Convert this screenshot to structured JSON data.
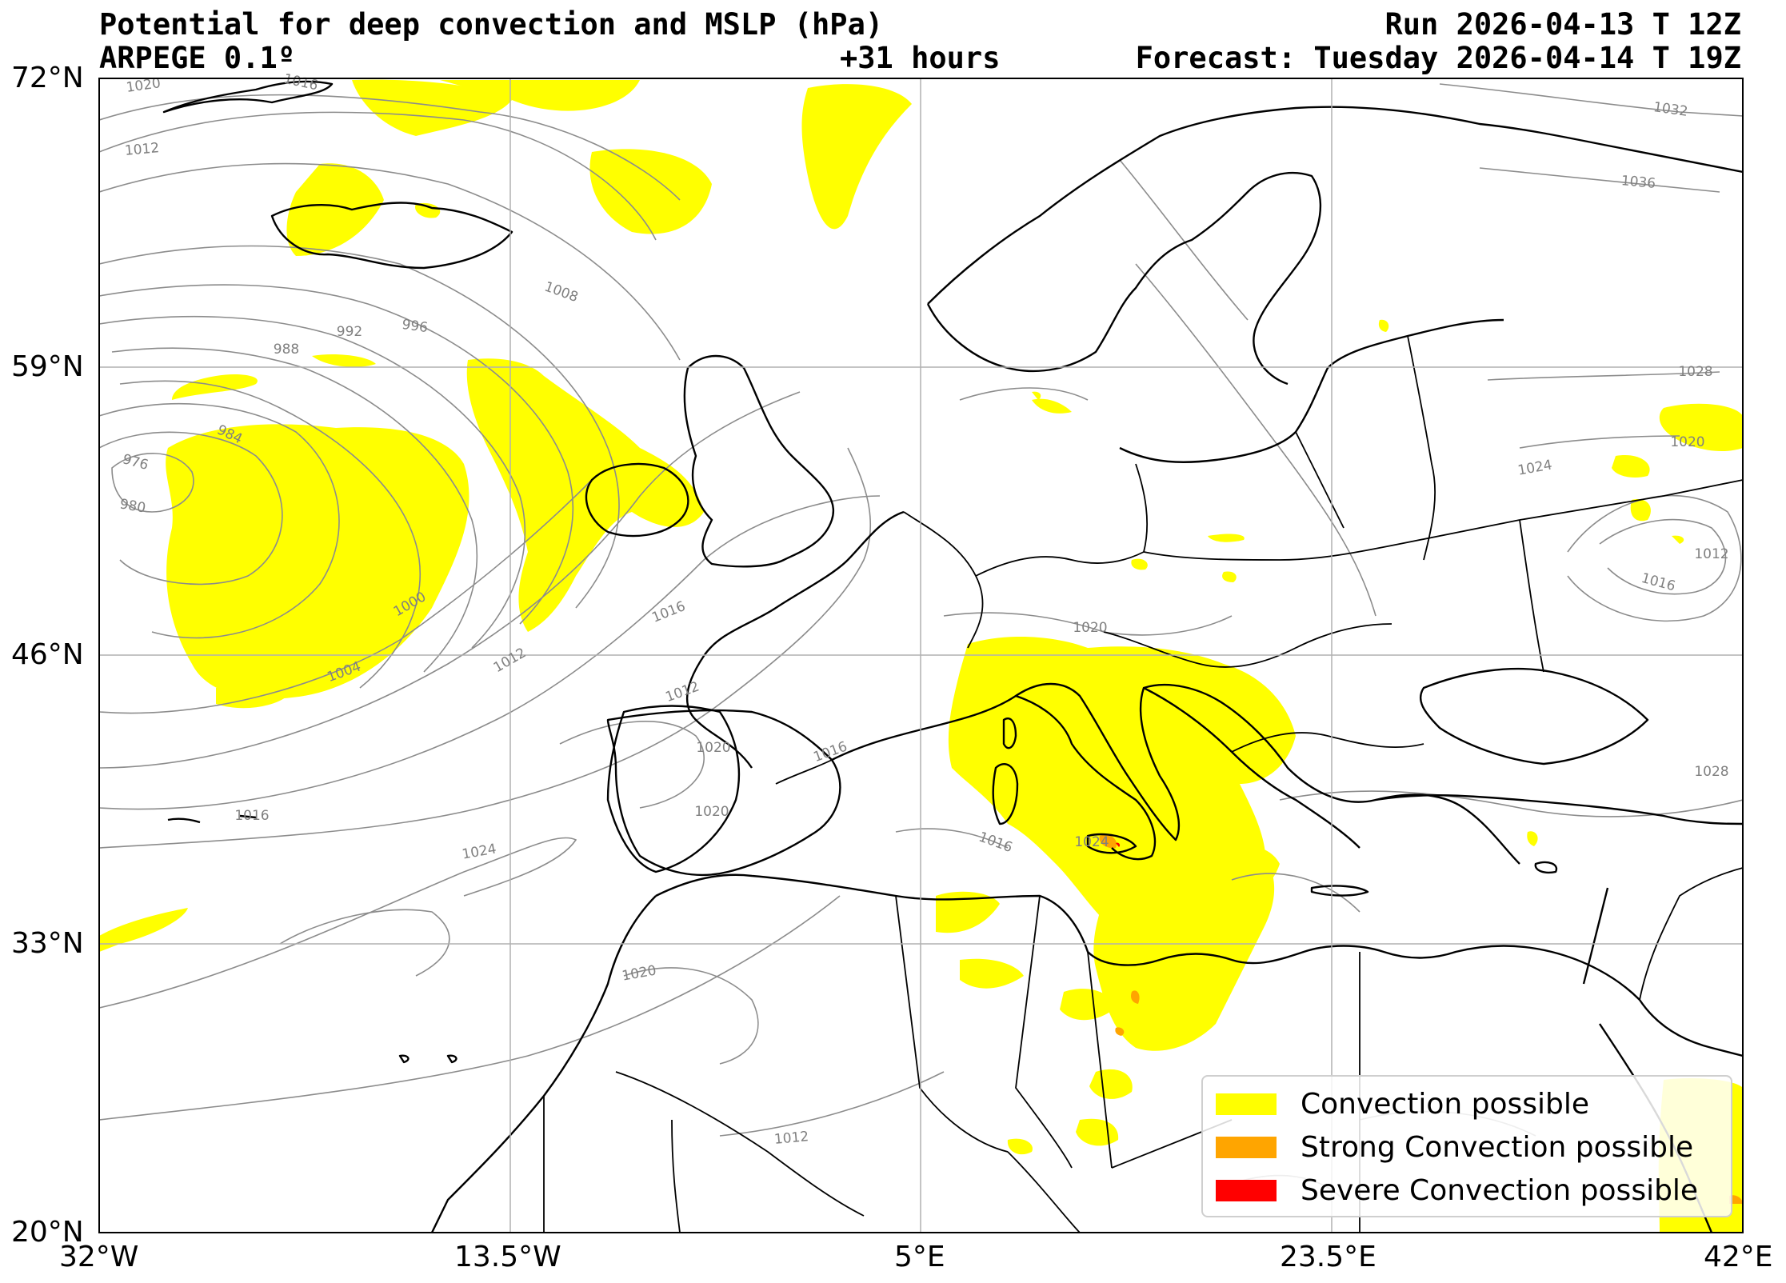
{
  "header": {
    "title": "Potential for deep convection and MSLP (hPa)",
    "model": "ARPEGE 0.1º",
    "lead_time": "+31 hours",
    "run": "Run 2026-04-13 T 12Z",
    "forecast": "Forecast: Tuesday 2026-04-14 T 19Z"
  },
  "axes": {
    "lat_labels": [
      "72°N",
      "59°N",
      "46°N",
      "33°N",
      "20°N"
    ],
    "lon_labels": [
      "32°W",
      "13.5°W",
      "5°E",
      "23.5°E",
      "42°E"
    ],
    "lat_range": [
      20,
      72
    ],
    "lon_range": [
      -32,
      42
    ],
    "gridlines": true
  },
  "isobar_labels": [
    "1020",
    "1016",
    "1012",
    "1012",
    "1008",
    "996",
    "992",
    "988",
    "984",
    "976",
    "980",
    "1000",
    "1004",
    "1012",
    "1016",
    "1020",
    "1016",
    "1020",
    "1024",
    "1016",
    "1020",
    "1016",
    "1012",
    "1020",
    "1024",
    "1032",
    "1036",
    "1028",
    "1024",
    "1020",
    "1012",
    "1016",
    "1028"
  ],
  "legend": {
    "placement": "lower-right",
    "items": [
      {
        "label": "Convection possible",
        "color": "#ffff00"
      },
      {
        "label": "Strong Convection possible",
        "color": "#ffa500"
      },
      {
        "label": "Severe Convection possible",
        "color": "#ff0000"
      }
    ]
  },
  "colors": {
    "convection": "#ffff00",
    "strong": "#ffa500",
    "severe": "#ff0000",
    "isobar": "#8c8c8c",
    "coast": "#000000",
    "grid": "#b0b0b0"
  }
}
